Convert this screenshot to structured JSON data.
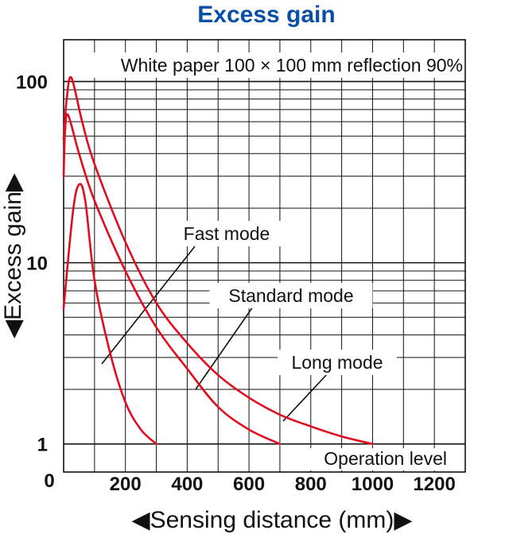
{
  "chart_data": {
    "type": "line",
    "title": "Excess gain",
    "xlabel": "◀Sensing distance (mm)▶",
    "ylabel": "◀Excess gain▶",
    "y_scale": "log",
    "xlim": [
      0,
      1300
    ],
    "ylim": [
      0.7,
      170
    ],
    "x_ticks": [
      "0",
      "200",
      "400",
      "600",
      "800",
      "1000",
      "1200"
    ],
    "y_ticks": [
      "1",
      "10",
      "100"
    ],
    "annotation": "White paper 100 × 100 mm reflection 90%",
    "reference_line": {
      "label": "Operation level",
      "y": 1
    },
    "grid": true,
    "series": [
      {
        "name": "Fast mode",
        "color": "#e00d1e",
        "x": [
          0,
          30,
          50,
          70,
          100,
          150,
          200,
          250,
          300
        ],
        "y": [
          5.6,
          19,
          27,
          22,
          8,
          3.2,
          1.7,
          1.2,
          1.0
        ]
      },
      {
        "name": "Standard mode",
        "color": "#e00d1e",
        "x": [
          0,
          5,
          15,
          50,
          100,
          200,
          300,
          400,
          500,
          600,
          700
        ],
        "y": [
          30,
          55,
          65,
          40,
          22,
          9,
          4.4,
          2.6,
          1.6,
          1.2,
          1.0
        ]
      },
      {
        "name": "Long mode",
        "color": "#e00d1e",
        "x": [
          0,
          10,
          25,
          60,
          100,
          200,
          300,
          400,
          500,
          600,
          700,
          800,
          900,
          1000
        ],
        "y": [
          48,
          80,
          105,
          60,
          35,
          13,
          6,
          3.6,
          2.4,
          1.8,
          1.45,
          1.25,
          1.1,
          1.0
        ]
      }
    ],
    "series_labels": [
      "Fast mode",
      "Standard mode",
      "Long mode"
    ]
  }
}
